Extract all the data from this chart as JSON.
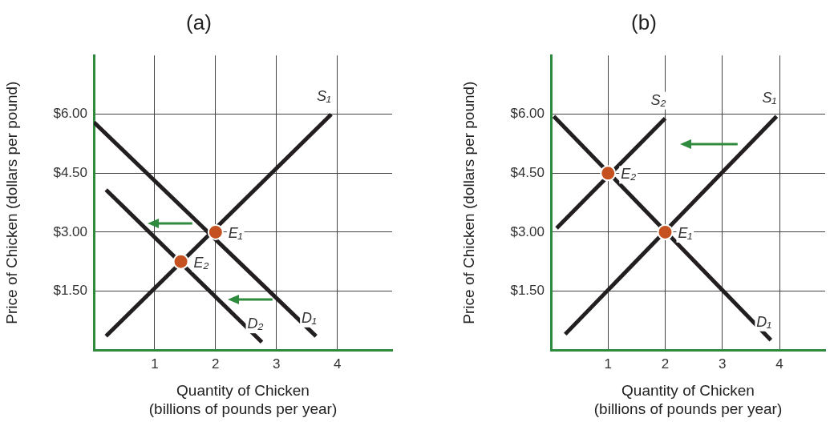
{
  "chart_data": [
    {
      "type": "line",
      "title": "(a)",
      "xlabel": "Quantity of Chicken\n(billions of pounds per year)",
      "ylabel": "Price of Chicken (dollars per pound)",
      "xlim": [
        0,
        4.9
      ],
      "xticks": [
        1,
        2,
        3,
        4
      ],
      "ylim": [
        0,
        7.5
      ],
      "yticks": [
        {
          "value": 1.5,
          "label": "$1.50"
        },
        {
          "value": 3,
          "label": "$3.00"
        },
        {
          "value": 4.5,
          "label": "$4.50"
        },
        {
          "value": 6,
          "label": "$6.00"
        }
      ],
      "grid": true,
      "legend": false,
      "series": [
        {
          "name": "S₁",
          "color": "#231f20",
          "x": [
            0.2,
            3.9
          ],
          "values": [
            0.35,
            6.0
          ]
        },
        {
          "name": "D₁",
          "color": "#231f20",
          "x": [
            0.0,
            3.65
          ],
          "values": [
            5.8,
            0.35
          ]
        },
        {
          "name": "D₂",
          "color": "#231f20",
          "x": [
            0.2,
            2.76
          ],
          "values": [
            4.08,
            0.2
          ]
        },
        {
          "type": "scatter",
          "color": "#c4511f",
          "x": [
            2,
            1.43
          ],
          "values": [
            3,
            2.25
          ]
        }
      ],
      "annotations": [
        {
          "text": "E₁",
          "x": 2,
          "y": 3
        },
        {
          "text": "E₂",
          "x": 1.43,
          "y": 2.25
        }
      ]
    },
    {
      "type": "line",
      "title": "(b)",
      "xlabel": "Quantity of Chicken\n(billions of pounds per year)",
      "ylabel": "Price of Chicken (dollars per pound)",
      "xlim": [
        0,
        4.8
      ],
      "xticks": [
        1,
        2,
        3,
        4
      ],
      "ylim": [
        0,
        7.5
      ],
      "yticks": [
        {
          "value": 1.5,
          "label": "$1.50"
        },
        {
          "value": 3,
          "label": "$3.00"
        },
        {
          "value": 4.5,
          "label": "$4.50"
        },
        {
          "value": 6,
          "label": "$6.00"
        }
      ],
      "grid": true,
      "legend": false,
      "series": [
        {
          "name": "S₁",
          "color": "#231f20",
          "x": [
            0.25,
            3.95
          ],
          "values": [
            0.4,
            5.95
          ]
        },
        {
          "name": "S₂",
          "color": "#231f20",
          "x": [
            0.1,
            2.0
          ],
          "values": [
            3.1,
            5.9
          ]
        },
        {
          "name": "D₁",
          "color": "#231f20",
          "x": [
            0.05,
            3.85
          ],
          "values": [
            5.95,
            0.25
          ]
        },
        {
          "type": "scatter",
          "color": "#c4511f",
          "x": [
            1,
            2
          ],
          "values": [
            4.5,
            3
          ]
        }
      ],
      "annotations": [
        {
          "text": "E₂",
          "x": 1,
          "y": 4.5
        },
        {
          "text": "E₁",
          "x": 2,
          "y": 3
        }
      ]
    }
  ]
}
